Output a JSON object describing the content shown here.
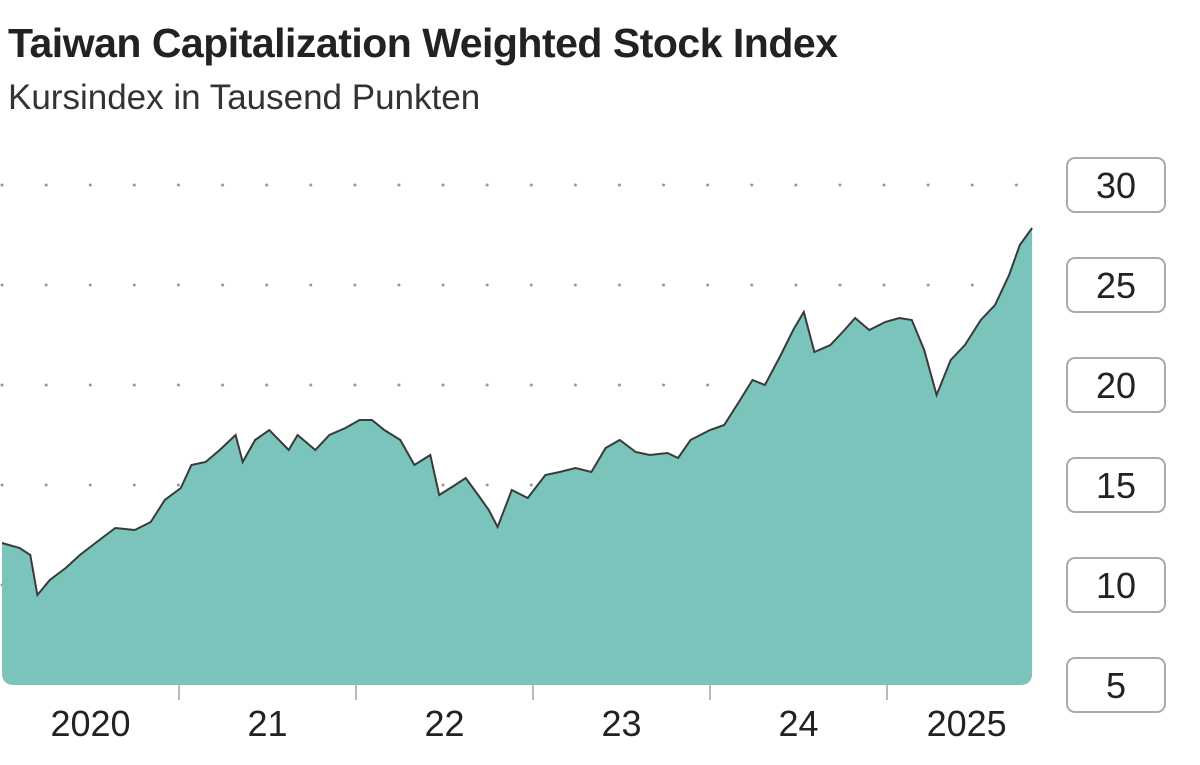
{
  "chart_data": {
    "type": "area",
    "title": "Taiwan Capitalization Weighted Stock Index",
    "subtitle": "Kursindex in Tausend Punkten",
    "xlabel": "",
    "ylabel": "",
    "ylim": [
      5,
      30
    ],
    "xlim": [
      2020.0,
      2025.83
    ],
    "yticks": [
      5,
      10,
      15,
      20,
      25,
      30
    ],
    "xticks": [
      {
        "pos": 2020.5,
        "label": "2020"
      },
      {
        "pos": 2021.5,
        "label": "21"
      },
      {
        "pos": 2022.5,
        "label": "22"
      },
      {
        "pos": 2023.5,
        "label": "23"
      },
      {
        "pos": 2024.5,
        "label": "24"
      },
      {
        "pos": 2025.45,
        "label": "2025"
      }
    ],
    "year_boundaries": [
      2021,
      2022,
      2023,
      2024,
      2025
    ],
    "grid": true,
    "colors": {
      "fill": "#7bc4bb",
      "line": "#3a3a3a",
      "grid": "#9a9a9a",
      "box": "#aaaaaa"
    },
    "x": [
      2020.0,
      2020.1,
      2020.16,
      2020.2,
      2020.27,
      2020.36,
      2020.44,
      2020.55,
      2020.64,
      2020.75,
      2020.84,
      2020.92,
      2021.01,
      2021.07,
      2021.15,
      2021.23,
      2021.32,
      2021.36,
      2021.43,
      2021.51,
      2021.62,
      2021.67,
      2021.77,
      2021.85,
      2021.94,
      2022.02,
      2022.09,
      2022.16,
      2022.25,
      2022.33,
      2022.42,
      2022.47,
      2022.56,
      2022.62,
      2022.69,
      2022.75,
      2022.8,
      2022.88,
      2022.97,
      2023.07,
      2023.15,
      2023.24,
      2023.33,
      2023.41,
      2023.49,
      2023.58,
      2023.66,
      2023.76,
      2023.82,
      2023.89,
      2024.0,
      2024.08,
      2024.17,
      2024.24,
      2024.31,
      2024.4,
      2024.47,
      2024.53,
      2024.59,
      2024.68,
      2024.76,
      2024.82,
      2024.9,
      2024.99,
      2025.07,
      2025.14,
      2025.21,
      2025.28,
      2025.36,
      2025.44,
      2025.53,
      2025.61,
      2025.69,
      2025.75,
      2025.82
    ],
    "values": [
      12.1,
      11.85,
      11.5,
      9.5,
      10.25,
      10.85,
      11.5,
      12.25,
      12.85,
      12.75,
      13.15,
      14.25,
      14.85,
      16.0,
      16.15,
      16.75,
      17.5,
      16.15,
      17.25,
      17.75,
      16.75,
      17.5,
      16.75,
      17.5,
      17.85,
      18.25,
      18.25,
      17.75,
      17.25,
      16.0,
      16.5,
      14.5,
      15.0,
      15.35,
      14.5,
      13.75,
      12.9,
      14.75,
      14.35,
      15.5,
      15.65,
      15.85,
      15.65,
      16.85,
      17.25,
      16.65,
      16.5,
      16.6,
      16.35,
      17.25,
      17.75,
      18.0,
      19.25,
      20.25,
      20.0,
      21.5,
      22.75,
      23.65,
      21.65,
      22.0,
      22.75,
      23.35,
      22.75,
      23.15,
      23.35,
      23.25,
      21.75,
      19.5,
      21.25,
      22.0,
      23.25,
      24.0,
      25.5,
      27.0,
      27.85
    ]
  }
}
